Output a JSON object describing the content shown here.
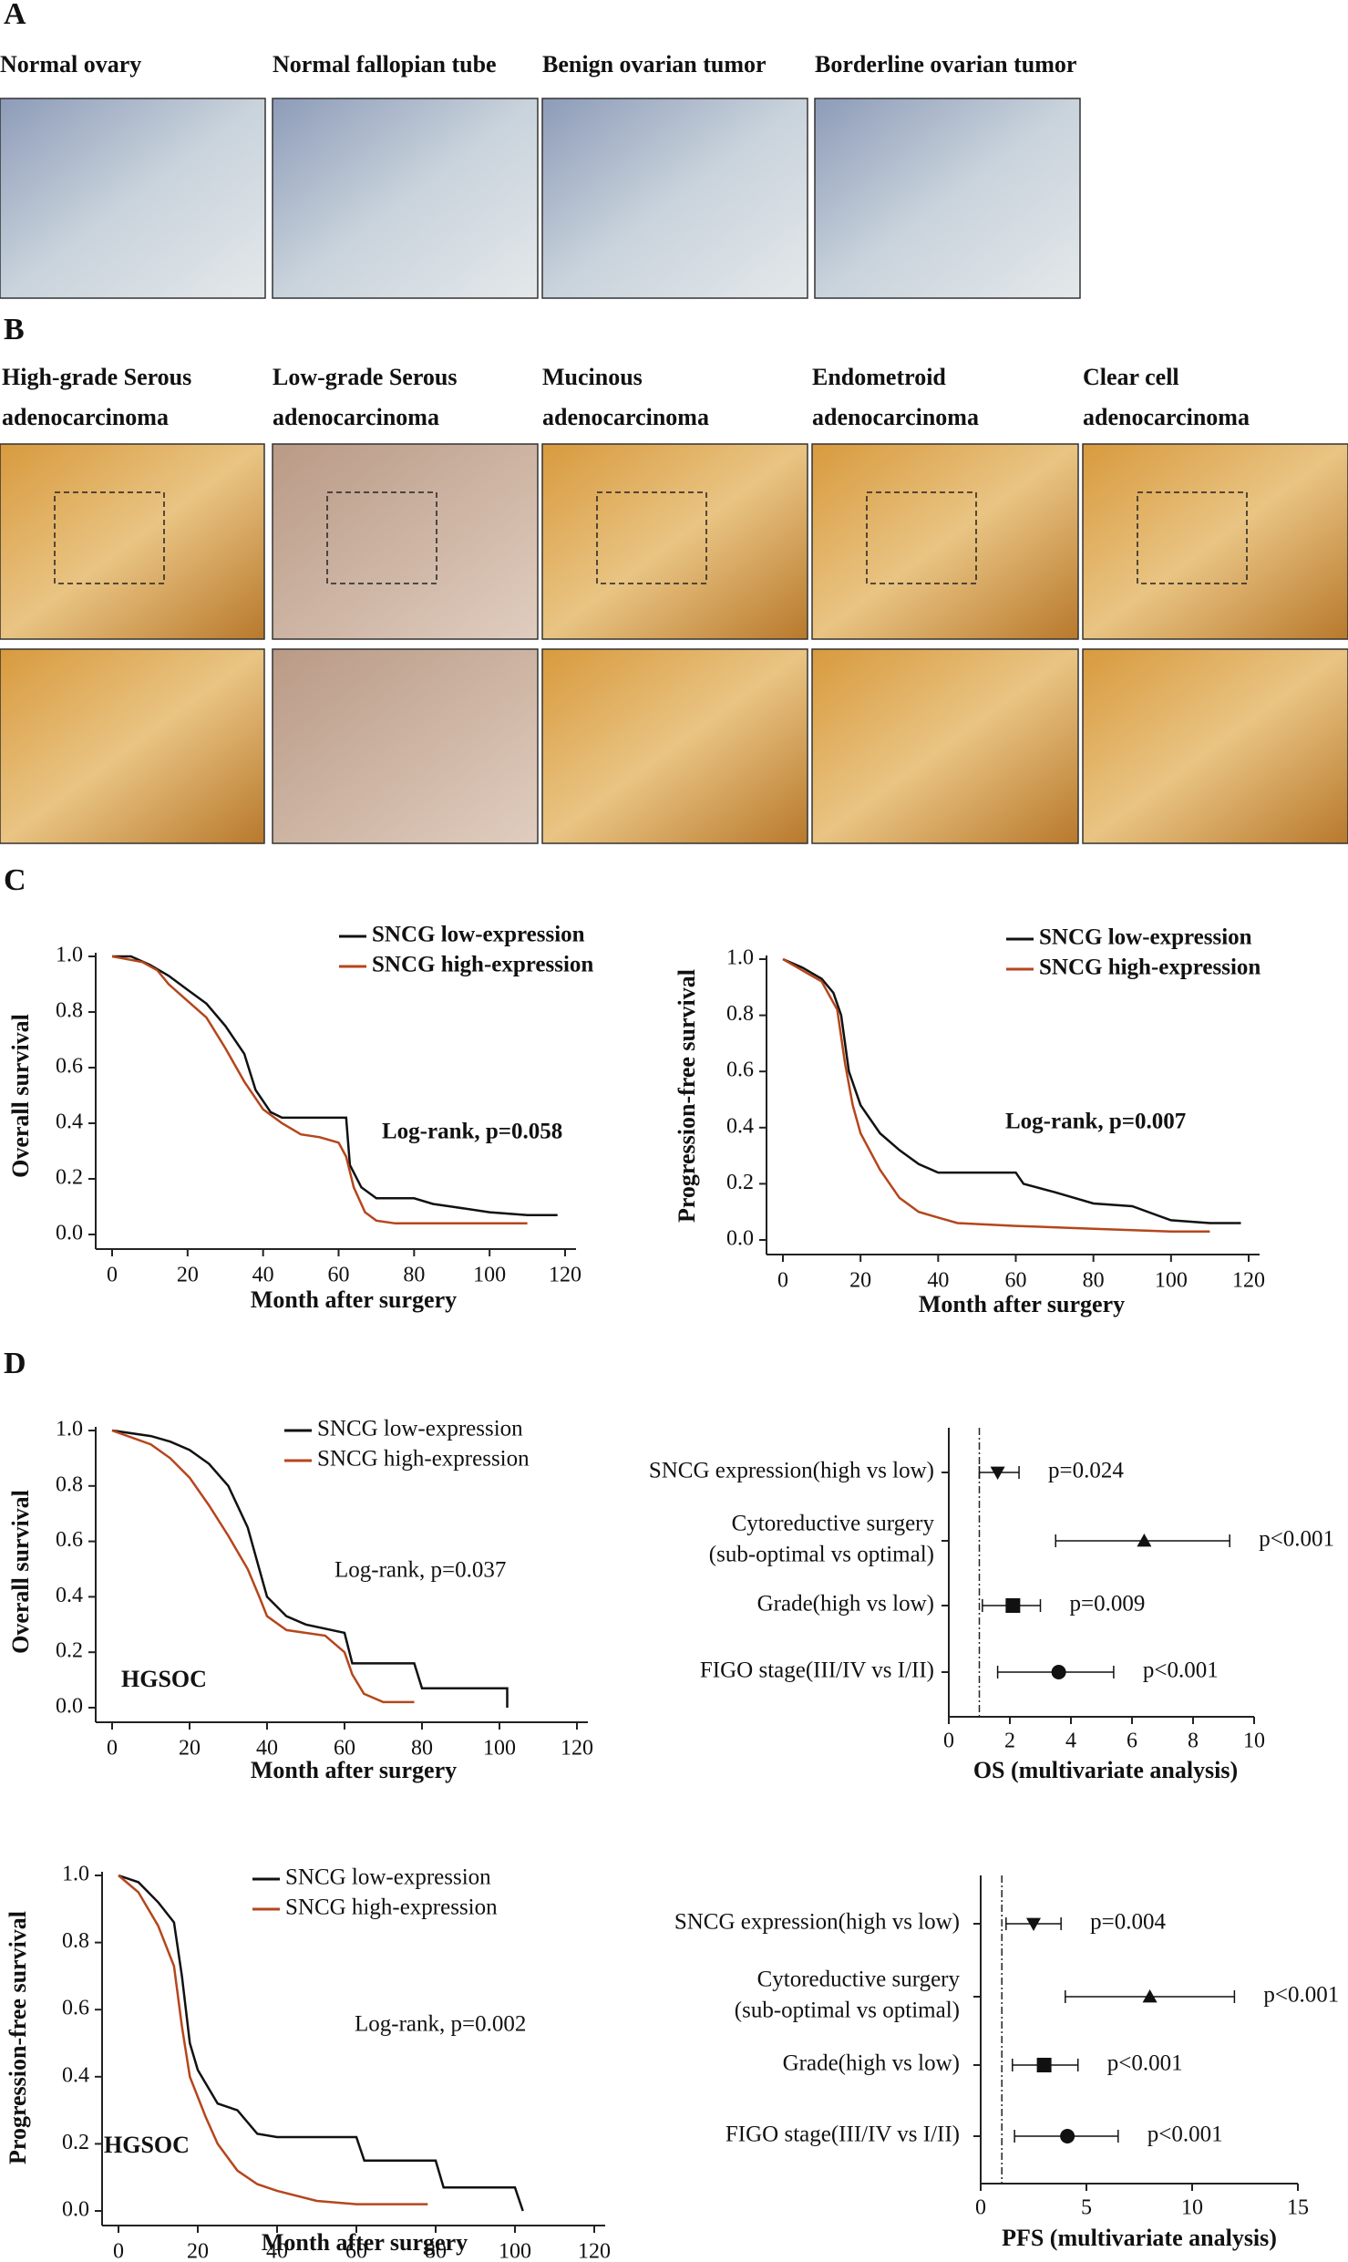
{
  "panel_A": {
    "letter": "A",
    "titles": [
      "Normal ovary",
      "Normal fallopian tube",
      "Benign ovarian tumor",
      "Borderline ovarian tumor"
    ]
  },
  "panel_B": {
    "letter": "B",
    "titles": [
      [
        "High-grade Serous",
        "adenocarcinoma"
      ],
      [
        "Low-grade Serous",
        "adenocarcinoma"
      ],
      [
        "Mucinous",
        "adenocarcinoma"
      ],
      [
        "Endometroid",
        "adenocarcinoma"
      ],
      [
        "Clear cell",
        "adenocarcinoma"
      ]
    ]
  },
  "panel_C": {
    "letter": "C"
  },
  "panel_D": {
    "letter": "D"
  },
  "chart_data": [
    {
      "type": "line",
      "ylabel": "Overall survival",
      "xlabel": "Month after surgery",
      "annotation": "Log-rank, p=0.058",
      "xlim": [
        0,
        120
      ],
      "ylim": [
        0,
        1
      ],
      "xticks": [
        0,
        20,
        40,
        60,
        80,
        100,
        120
      ],
      "yticks": [
        {
          "value": 0,
          "label": "0.0"
        },
        0.2,
        0.4,
        0.6,
        0.8,
        {
          "value": 1,
          "label": "1.0"
        }
      ],
      "series": [
        {
          "name": "SNCG low-expression",
          "color": "#111111",
          "x": [
            0,
            5,
            10,
            15,
            20,
            25,
            30,
            35,
            38,
            42,
            45,
            62,
            63,
            66,
            70,
            80,
            85,
            90,
            100,
            110,
            118
          ],
          "values": [
            1,
            1,
            0.97,
            0.93,
            0.88,
            0.83,
            0.75,
            0.65,
            0.52,
            0.44,
            0.42,
            0.42,
            0.25,
            0.17,
            0.13,
            0.13,
            0.11,
            0.1,
            0.08,
            0.07,
            0.07
          ]
        },
        {
          "name": "SNCG high-expression",
          "color": "#b5461c",
          "x": [
            0,
            8,
            12,
            15,
            20,
            25,
            30,
            35,
            40,
            45,
            50,
            55,
            60,
            62,
            64,
            67,
            70,
            75,
            110
          ],
          "values": [
            1,
            0.98,
            0.95,
            0.9,
            0.84,
            0.78,
            0.67,
            0.55,
            0.45,
            0.4,
            0.36,
            0.35,
            0.33,
            0.28,
            0.17,
            0.08,
            0.05,
            0.04,
            0.04
          ]
        }
      ]
    },
    {
      "type": "line",
      "ylabel": "Progression-free survival",
      "xlabel": "Month after surgery",
      "annotation": "Log-rank, p=0.007",
      "xlim": [
        0,
        120
      ],
      "ylim": [
        0,
        1
      ],
      "xticks": [
        0,
        20,
        40,
        60,
        80,
        100,
        120
      ],
      "yticks": [
        {
          "value": 0,
          "label": "0.0"
        },
        0.2,
        0.4,
        0.6,
        0.8,
        {
          "value": 1,
          "label": "1.0"
        }
      ],
      "series": [
        {
          "name": "SNCG low-expression",
          "color": "#111111",
          "x": [
            0,
            5,
            10,
            13,
            15,
            17,
            20,
            25,
            30,
            35,
            40,
            60,
            62,
            70,
            80,
            90,
            100,
            110,
            118
          ],
          "values": [
            1,
            0.97,
            0.93,
            0.88,
            0.8,
            0.6,
            0.48,
            0.38,
            0.32,
            0.27,
            0.24,
            0.24,
            0.2,
            0.17,
            0.13,
            0.12,
            0.07,
            0.06,
            0.06
          ]
        },
        {
          "name": "SNCG high-expression",
          "color": "#b5461c",
          "x": [
            0,
            5,
            10,
            14,
            16,
            18,
            20,
            25,
            30,
            35,
            40,
            45,
            60,
            80,
            100,
            110
          ],
          "values": [
            1,
            0.96,
            0.92,
            0.82,
            0.63,
            0.48,
            0.38,
            0.25,
            0.15,
            0.1,
            0.08,
            0.06,
            0.05,
            0.04,
            0.03,
            0.03
          ]
        }
      ]
    },
    {
      "type": "line",
      "ylabel": "Overall survival",
      "xlabel": "Month after surgery",
      "annotation": "Log-rank, p=0.037",
      "group_label": "HGSOC",
      "xlim": [
        0,
        120
      ],
      "ylim": [
        0,
        1
      ],
      "xticks": [
        0,
        20,
        40,
        60,
        80,
        100,
        120
      ],
      "yticks": [
        {
          "value": 0,
          "label": "0.0"
        },
        0.2,
        0.4,
        0.6,
        0.8,
        {
          "value": 1,
          "label": "1.0"
        }
      ],
      "series": [
        {
          "name": "SNCG low-expression",
          "color": "#111111",
          "x": [
            0,
            10,
            15,
            20,
            25,
            30,
            35,
            38,
            40,
            45,
            50,
            60,
            62,
            78,
            80,
            102,
            102
          ],
          "values": [
            1,
            0.98,
            0.96,
            0.93,
            0.88,
            0.8,
            0.65,
            0.5,
            0.4,
            0.33,
            0.3,
            0.27,
            0.16,
            0.16,
            0.07,
            0.07,
            0
          ]
        },
        {
          "name": "SNCG high-expression",
          "color": "#b5461c",
          "x": [
            0,
            10,
            15,
            20,
            25,
            30,
            35,
            38,
            40,
            45,
            55,
            60,
            62,
            65,
            70,
            78
          ],
          "values": [
            1,
            0.95,
            0.9,
            0.83,
            0.73,
            0.62,
            0.5,
            0.4,
            0.33,
            0.28,
            0.26,
            0.2,
            0.12,
            0.05,
            0.02,
            0.02
          ]
        }
      ]
    },
    {
      "type": "forest",
      "xlabel": "OS (multivariate analysis)",
      "color": "#111111",
      "reference": 1,
      "xlim": [
        0,
        10
      ],
      "xticks": [
        0,
        2,
        4,
        6,
        8,
        10
      ],
      "categories": [
        [
          "SNCG expression(high vs low)"
        ],
        [
          "Cytoreductive surgery",
          "(sub-optimal vs optimal)"
        ],
        [
          "Grade(high vs low)"
        ],
        [
          "FIGO stage(III/IV vs I/II)"
        ]
      ],
      "values": [
        1.6,
        6.4,
        2.1,
        3.6
      ],
      "lower": [
        1.0,
        3.5,
        1.1,
        1.6
      ],
      "upper": [
        2.3,
        9.2,
        3.0,
        5.4
      ],
      "p_labels": [
        "p=0.024",
        "p<0.001",
        "p=0.009",
        "p<0.001"
      ],
      "markers": [
        "triangle-down",
        "triangle-up",
        "square",
        "circle"
      ]
    },
    {
      "type": "line",
      "ylabel": "Progression-free survival",
      "xlabel": "Month after surgery",
      "annotation": "Log-rank, p=0.002",
      "group_label": "HGSOC",
      "xlim": [
        0,
        120
      ],
      "ylim": [
        0,
        1
      ],
      "xticks": [
        0,
        20,
        40,
        60,
        80,
        100,
        120
      ],
      "yticks": [
        {
          "value": 0,
          "label": "0.0"
        },
        0.2,
        0.4,
        0.6,
        0.8,
        {
          "value": 1,
          "label": "1.0"
        }
      ],
      "series": [
        {
          "name": "SNCG low-expression",
          "color": "#111111",
          "x": [
            0,
            5,
            10,
            14,
            16,
            18,
            20,
            25,
            30,
            35,
            40,
            60,
            62,
            80,
            82,
            100,
            102
          ],
          "values": [
            1,
            0.98,
            0.92,
            0.86,
            0.7,
            0.5,
            0.42,
            0.32,
            0.3,
            0.23,
            0.22,
            0.22,
            0.15,
            0.15,
            0.07,
            0.07,
            0
          ]
        },
        {
          "name": "SNCG high-expression",
          "color": "#b5461c",
          "x": [
            0,
            5,
            10,
            14,
            16,
            18,
            22,
            25,
            30,
            35,
            40,
            50,
            60,
            78
          ],
          "values": [
            1,
            0.95,
            0.85,
            0.73,
            0.55,
            0.4,
            0.28,
            0.2,
            0.12,
            0.08,
            0.06,
            0.03,
            0.02,
            0.02
          ]
        }
      ]
    },
    {
      "type": "forest",
      "xlabel": "PFS (multivariate analysis)",
      "color": "#111111",
      "reference": 1,
      "xlim": [
        0,
        15
      ],
      "xticks": [
        0,
        5,
        10,
        15
      ],
      "categories": [
        [
          "SNCG expression(high vs low)"
        ],
        [
          "Cytoreductive surgery",
          "(sub-optimal vs optimal)"
        ],
        [
          "Grade(high vs low)"
        ],
        [
          "FIGO stage(III/IV vs I/II)"
        ]
      ],
      "values": [
        2.5,
        8.0,
        3.0,
        4.1
      ],
      "lower": [
        1.2,
        4.0,
        1.5,
        1.6
      ],
      "upper": [
        3.8,
        12.0,
        4.6,
        6.5
      ],
      "p_labels": [
        "p=0.004",
        "p<0.001",
        "p<0.001",
        "p<0.001"
      ],
      "markers": [
        "triangle-down",
        "triangle-up",
        "square",
        "circle"
      ]
    }
  ]
}
